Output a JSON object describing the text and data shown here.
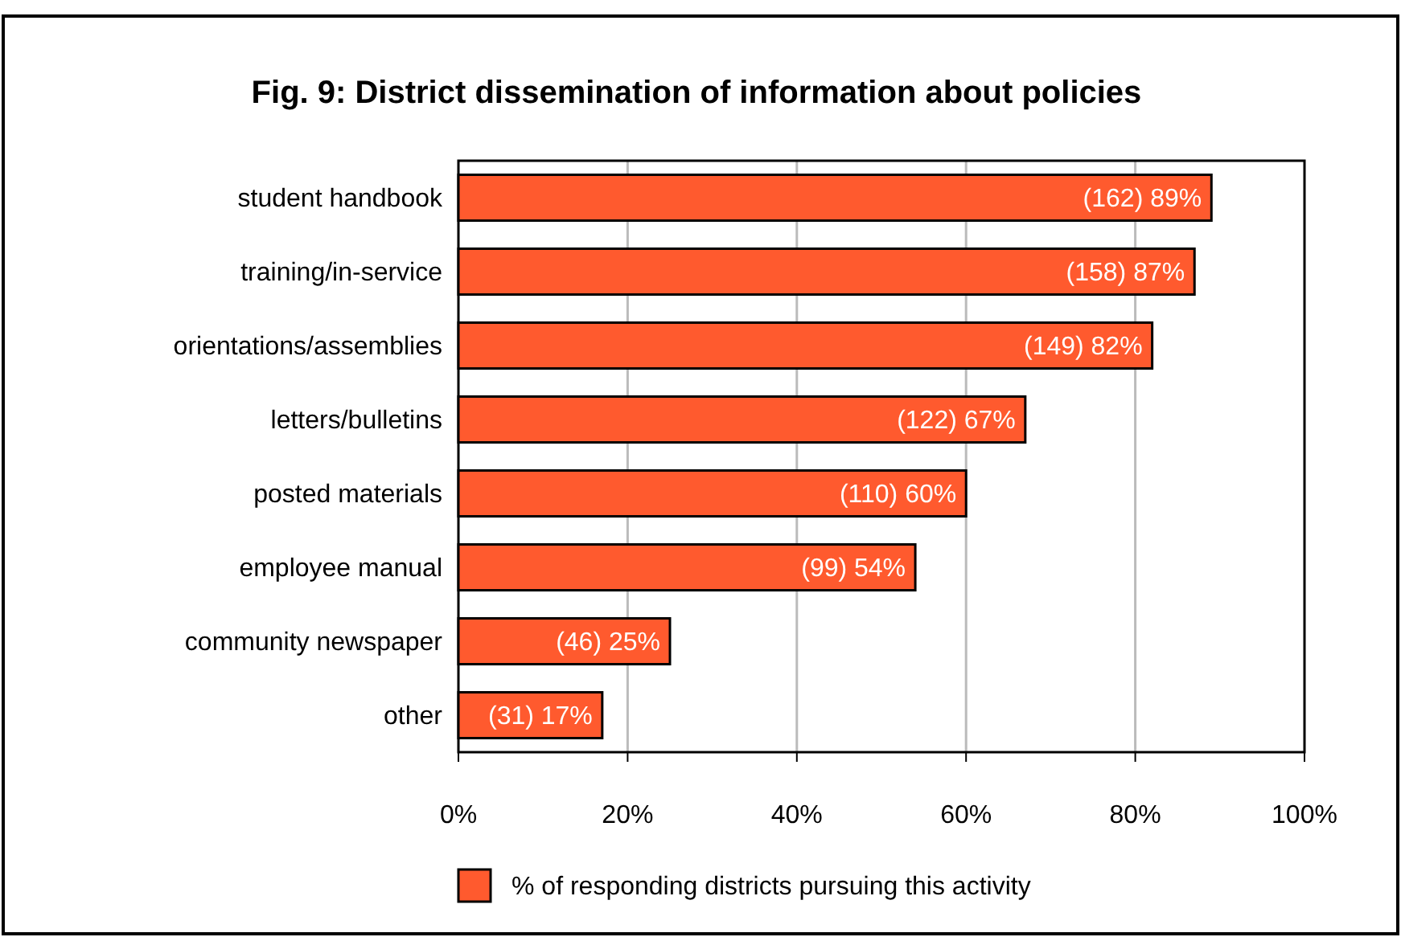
{
  "chart_data": {
    "type": "bar",
    "orientation": "horizontal",
    "title": "Fig. 9: District dissemination of information about policies",
    "categories": [
      "student handbook",
      "training/in-service",
      "orientations/assemblies",
      "letters/bulletins",
      "posted materials",
      "employee manual",
      "community newspaper",
      "other"
    ],
    "series": [
      {
        "name": "% of responding districts pursuing this activity",
        "color": "#ff5a2e",
        "values": [
          89,
          87,
          82,
          67,
          60,
          54,
          25,
          17
        ],
        "value_labels": [
          "(162) 89%",
          "(158) 87%",
          "(149) 82%",
          "(122) 67%",
          "(110) 60%",
          "(99) 54%",
          "(46) 25%",
          "(31) 17%"
        ]
      }
    ],
    "xlim": [
      0,
      100
    ],
    "xticks": [
      {
        "value": 0,
        "label": "0%"
      },
      {
        "value": 20,
        "label": "20%"
      },
      {
        "value": 40,
        "label": "40%"
      },
      {
        "value": 60,
        "label": "60%"
      },
      {
        "value": 80,
        "label": "80%"
      },
      {
        "value": 100,
        "label": "100%"
      }
    ],
    "grid": "x",
    "legend": "bottom"
  }
}
